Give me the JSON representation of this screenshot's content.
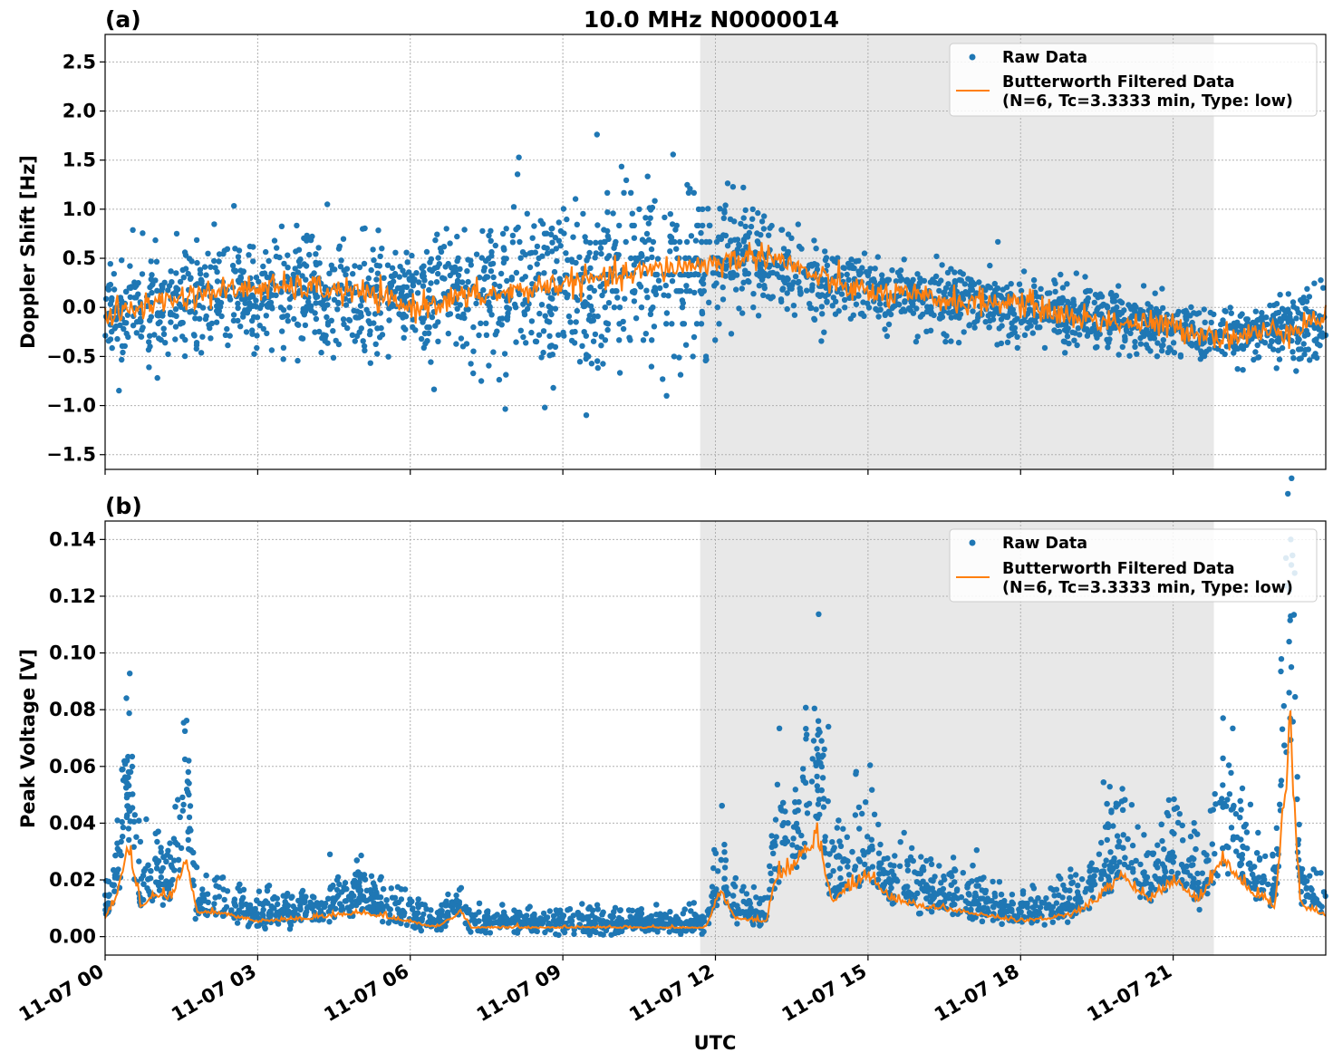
{
  "chart_data": [
    {
      "type": "scatter",
      "panel_label": "(a)",
      "title": "10.0 MHz N0000014",
      "xlabel": "",
      "ylabel": "Doppler Shift [Hz]",
      "x_range": [
        "2023-11-07 00:00",
        "2023-11-08 00:00"
      ],
      "ylim": [
        -1.65,
        2.78
      ],
      "y_ticks": [
        2.5,
        2.0,
        1.5,
        1.0,
        0.5,
        0.0,
        -0.5,
        -1.0,
        -1.5
      ],
      "y_tick_labels": [
        "2.5",
        "2.0",
        "1.5",
        "1.0",
        "0.5",
        "0.0",
        "−0.5",
        "−1.0",
        "−1.5"
      ],
      "grid": true,
      "legend_position": "top-right",
      "shaded_interval": [
        "11-07 11:42",
        "11-07 21:48"
      ],
      "series": [
        {
          "name": "Raw Data",
          "kind": "points",
          "color": "#1f77b4",
          "summary": {
            "hours": [
              0,
              2,
              4,
              6,
              8,
              10,
              11.5,
              12.5,
              14,
              16,
              18,
              20,
              22,
              23.5
            ],
            "center": [
              -0.05,
              0.1,
              0.15,
              0.05,
              0.2,
              0.3,
              0.4,
              0.55,
              0.25,
              0.1,
              0.0,
              -0.15,
              -0.3,
              -0.2
            ],
            "spread": [
              0.45,
              0.6,
              0.6,
              0.5,
              0.8,
              0.9,
              0.9,
              0.5,
              0.35,
              0.3,
              0.35,
              0.3,
              0.25,
              0.4
            ]
          }
        },
        {
          "name": "Butterworth Filtered Data\n(N=6, Tc=3.3333 min, Type: low)",
          "kind": "line",
          "color": "#ff7f0e",
          "x_hours": [
            0,
            1,
            2,
            3,
            4,
            5,
            6,
            7,
            8,
            9,
            10,
            11,
            12,
            13,
            14,
            15,
            16,
            17,
            18,
            19,
            20,
            21,
            22,
            23,
            24
          ],
          "y": [
            -0.1,
            0.05,
            0.15,
            0.2,
            0.2,
            0.15,
            0.0,
            0.1,
            0.15,
            0.25,
            0.3,
            0.4,
            0.45,
            0.55,
            0.3,
            0.15,
            0.1,
            0.05,
            0.05,
            -0.1,
            -0.15,
            -0.2,
            -0.3,
            -0.25,
            -0.1
          ]
        }
      ],
      "legend": [
        "Raw Data",
        "Butterworth Filtered Data",
        "(N=6, Tc=3.3333 min, Type: low)"
      ]
    },
    {
      "type": "scatter",
      "panel_label": "(b)",
      "title": "",
      "xlabel": "UTC",
      "ylabel": "Peak Voltage [V]",
      "x_range": [
        "2023-11-07 00:00",
        "2023-11-08 00:00"
      ],
      "ylim": [
        -0.0065,
        0.1465
      ],
      "y_ticks": [
        0.14,
        0.12,
        0.1,
        0.08,
        0.06,
        0.04,
        0.02,
        0.0
      ],
      "y_tick_labels": [
        "0.14",
        "0.12",
        "0.10",
        "0.08",
        "0.06",
        "0.04",
        "0.02",
        "0.00"
      ],
      "x_tick_hours": [
        0,
        3,
        6,
        9,
        12,
        15,
        18,
        21
      ],
      "x_tick_labels": [
        "11-07 00",
        "11-07 03",
        "11-07 06",
        "11-07 09",
        "11-07 12",
        "11-07 15",
        "11-07 18",
        "11-07 21"
      ],
      "grid": true,
      "legend_position": "top-right",
      "shaded_interval": [
        "11-07 11:42",
        "11-07 21:48"
      ],
      "series": [
        {
          "name": "Raw Data",
          "kind": "points",
          "color": "#1f77b4",
          "peaks": [
            {
              "hour": 0.45,
              "value": 0.062
            },
            {
              "hour": 1.65,
              "value": 0.062
            },
            {
              "hour": 5.0,
              "value": 0.022
            },
            {
              "hour": 14.0,
              "value": 0.076
            },
            {
              "hour": 23.3,
              "value": 0.14
            }
          ]
        },
        {
          "name": "Butterworth Filtered Data\n(N=6, Tc=3.3333 min, Type: low)",
          "kind": "line",
          "color": "#ff7f0e",
          "x_hours": [
            0,
            0.2,
            0.45,
            0.7,
            1.0,
            1.3,
            1.6,
            1.8,
            2.2,
            3,
            4,
            5,
            6,
            6.5,
            7,
            7.2,
            8,
            9,
            10,
            11,
            11.8,
            12.1,
            12.4,
            13,
            13.2,
            13.5,
            14.0,
            14.3,
            15,
            15.5,
            16,
            17,
            18,
            19,
            19.5,
            20,
            20.5,
            21,
            21.5,
            22,
            22.5,
            23.0,
            23.3,
            23.5,
            24
          ],
          "y": [
            0.006,
            0.012,
            0.03,
            0.01,
            0.014,
            0.012,
            0.026,
            0.008,
            0.008,
            0.005,
            0.006,
            0.008,
            0.005,
            0.003,
            0.008,
            0.003,
            0.003,
            0.003,
            0.003,
            0.003,
            0.003,
            0.015,
            0.006,
            0.005,
            0.02,
            0.022,
            0.033,
            0.012,
            0.02,
            0.012,
            0.01,
            0.008,
            0.005,
            0.007,
            0.012,
            0.02,
            0.012,
            0.018,
            0.012,
            0.025,
            0.015,
            0.01,
            0.065,
            0.01,
            0.007
          ]
        }
      ],
      "legend": [
        "Raw Data",
        "Butterworth Filtered Data",
        "(N=6, Tc=3.3333 min, Type: low)"
      ]
    }
  ]
}
